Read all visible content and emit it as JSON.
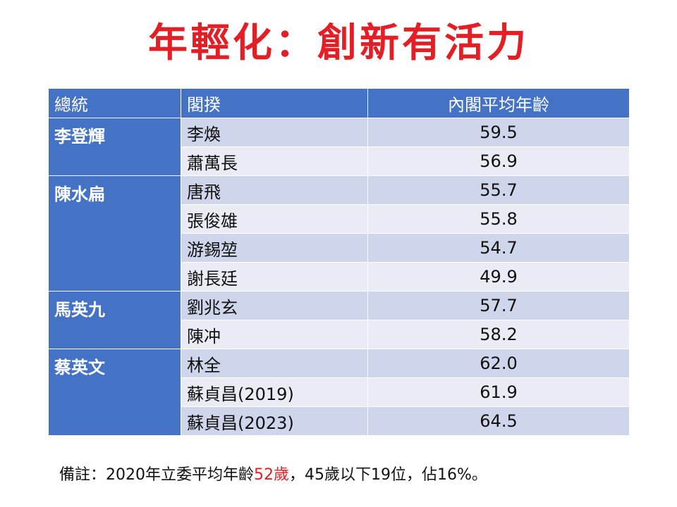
{
  "title": "年輕化：創新有活力",
  "table": {
    "headers": [
      "總統",
      "閣揆",
      "內閣平均年齡"
    ],
    "groups": [
      {
        "president": "李登輝",
        "rows": [
          {
            "premier": "李煥",
            "age": "59.5"
          },
          {
            "premier": "蕭萬長",
            "age": "56.9"
          }
        ]
      },
      {
        "president": "陳水扁",
        "rows": [
          {
            "premier": "唐飛",
            "age": "55.7"
          },
          {
            "premier": "張俊雄",
            "age": "55.8"
          },
          {
            "premier": "游錫堃",
            "age": "54.7"
          },
          {
            "premier": "謝長廷",
            "age": "49.9"
          }
        ]
      },
      {
        "president": "馬英九",
        "rows": [
          {
            "premier": "劉兆玄",
            "age": "57.7"
          },
          {
            "premier": "陳冲",
            "age": "58.2"
          }
        ]
      },
      {
        "president": "蔡英文",
        "rows": [
          {
            "premier": "林全",
            "age": "62.0"
          },
          {
            "premier": "蘇貞昌(2019)",
            "age": "61.9"
          },
          {
            "premier": "蘇貞昌(2023)",
            "age": "64.5"
          }
        ]
      }
    ]
  },
  "note": {
    "prefix": "備註：2020年立委平均年齡",
    "highlight": "52歲",
    "suffix": "，45歲以下19位，佔16%。"
  },
  "colors": {
    "title": "#e31e24",
    "header_bg": "#4472c4",
    "row_dark": "#cfd5ea",
    "row_light": "#e9ebf5",
    "highlight": "#e31e24"
  }
}
